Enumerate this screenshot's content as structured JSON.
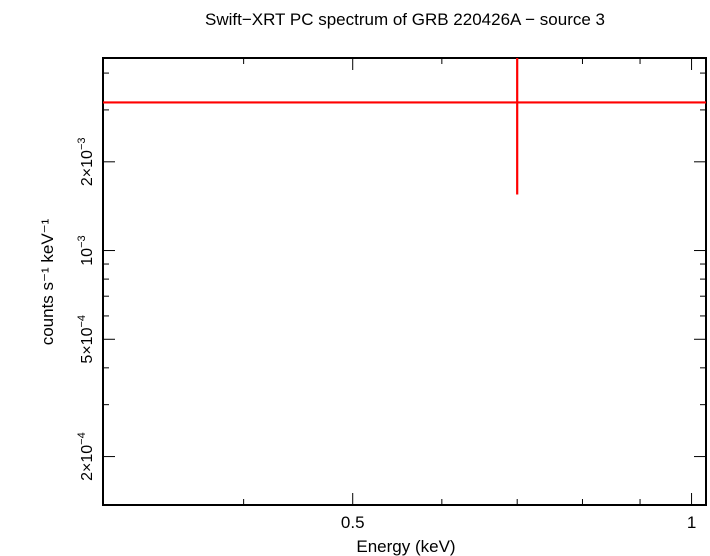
{
  "chart_data": {
    "type": "scatter",
    "title": "Swift−XRT PC spectrum of GRB 220426A − source 3",
    "xlabel": "Energy (keV)",
    "ylabel": "counts s⁻¹ keV⁻¹",
    "x_scale": "log",
    "y_scale": "log",
    "xlim": [
      0.3,
      1.03
    ],
    "ylim": [
      0.000137,
      0.0045
    ],
    "grid": false,
    "x_ticks": [
      {
        "value": 0.5,
        "label": "0.5"
      },
      {
        "value": 1.0,
        "label": "1"
      }
    ],
    "y_ticks": [
      {
        "value": 0.0002,
        "mantissa": "2×10",
        "exp": "−4"
      },
      {
        "value": 0.0005,
        "mantissa": "5×10",
        "exp": "−4"
      },
      {
        "value": 0.001,
        "mantissa": "10",
        "exp": "−3"
      },
      {
        "value": 0.002,
        "mantissa": "2×10",
        "exp": "−3"
      }
    ],
    "series": [
      {
        "color": "#ff0000",
        "points": [
          {
            "x": 0.7,
            "xerr": [
              0.3,
              1.03
            ],
            "y": 0.00318,
            "yerr": [
              0.00155,
              0.0045
            ]
          }
        ]
      }
    ]
  }
}
